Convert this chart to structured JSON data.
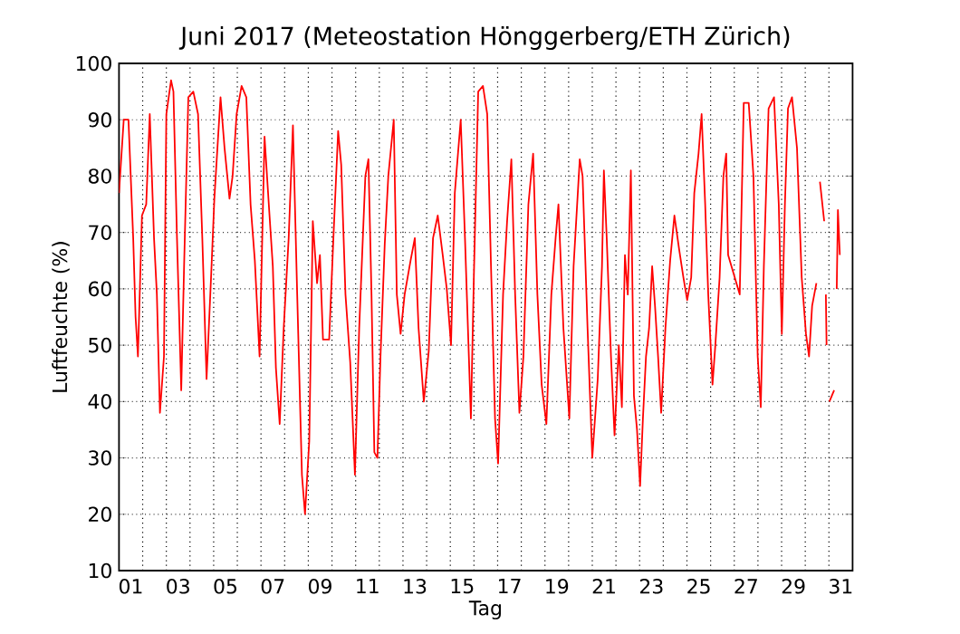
{
  "chart_data": {
    "type": "line",
    "title": "Juni 2017  (Meteostation Hönggerberg/ETH Zürich)",
    "xlabel": "Tag",
    "ylabel": "Luftfeuchte (%)",
    "xlim": [
      0,
      31
    ],
    "ylim": [
      10,
      100
    ],
    "xticks": [
      {
        "value": 0.5,
        "label": "01"
      },
      {
        "value": 1,
        "label": null
      },
      {
        "value": 2,
        "label": null
      },
      {
        "value": 2.5,
        "label": "03"
      },
      {
        "value": 3,
        "label": null
      },
      {
        "value": 4,
        "label": null
      },
      {
        "value": 4.5,
        "label": "05"
      },
      {
        "value": 5,
        "label": null
      },
      {
        "value": 6,
        "label": null
      },
      {
        "value": 6.5,
        "label": "07"
      },
      {
        "value": 7,
        "label": null
      },
      {
        "value": 8,
        "label": null
      },
      {
        "value": 8.5,
        "label": "09"
      },
      {
        "value": 9,
        "label": null
      },
      {
        "value": 10,
        "label": null
      },
      {
        "value": 10.5,
        "label": "11"
      },
      {
        "value": 11,
        "label": null
      },
      {
        "value": 12,
        "label": null
      },
      {
        "value": 12.5,
        "label": "13"
      },
      {
        "value": 13,
        "label": null
      },
      {
        "value": 14,
        "label": null
      },
      {
        "value": 14.5,
        "label": "15"
      },
      {
        "value": 15,
        "label": null
      },
      {
        "value": 16,
        "label": null
      },
      {
        "value": 16.5,
        "label": "17"
      },
      {
        "value": 17,
        "label": null
      },
      {
        "value": 18,
        "label": null
      },
      {
        "value": 18.5,
        "label": "19"
      },
      {
        "value": 19,
        "label": null
      },
      {
        "value": 20,
        "label": null
      },
      {
        "value": 20.5,
        "label": "21"
      },
      {
        "value": 21,
        "label": null
      },
      {
        "value": 22,
        "label": null
      },
      {
        "value": 22.5,
        "label": "23"
      },
      {
        "value": 23,
        "label": null
      },
      {
        "value": 24,
        "label": null
      },
      {
        "value": 24.5,
        "label": "25"
      },
      {
        "value": 25,
        "label": null
      },
      {
        "value": 26,
        "label": null
      },
      {
        "value": 26.5,
        "label": "27"
      },
      {
        "value": 27,
        "label": null
      },
      {
        "value": 28,
        "label": null
      },
      {
        "value": 28.5,
        "label": "29"
      },
      {
        "value": 29,
        "label": null
      },
      {
        "value": 30,
        "label": null
      },
      {
        "value": 30.5,
        "label": "31"
      }
    ],
    "yticks": [
      10,
      20,
      30,
      40,
      50,
      60,
      70,
      80,
      90,
      100
    ],
    "grid": true,
    "line_style": "solid",
    "series": [
      {
        "color": "#ff0000",
        "x": [
          0,
          0.2,
          0.4,
          0.6,
          0.7,
          0.8,
          0.97,
          1.15,
          1.3,
          1.48,
          1.6,
          1.73,
          1.9,
          2.0,
          2.2,
          2.3,
          2.45,
          2.63,
          2.75,
          2.93,
          3.14,
          3.34,
          3.52,
          3.7,
          3.9,
          4.03,
          4.29,
          4.46,
          4.67,
          4.8,
          4.97,
          5.18,
          5.38,
          5.56,
          5.74,
          5.94,
          6.15,
          6.33,
          6.5,
          6.63,
          6.79,
          6.96,
          7.17,
          7.35,
          7.53,
          7.73,
          7.86,
          8.04,
          8.19,
          8.37,
          8.49,
          8.62,
          8.88,
          9.06,
          9.26,
          9.39,
          9.57,
          9.77,
          9.97,
          10.15,
          10.41,
          10.54,
          10.67,
          10.79,
          10.92,
          11.05,
          11.23,
          11.38,
          11.61,
          11.74,
          11.9,
          12.07,
          12.32,
          12.5,
          12.66,
          12.88,
          13.09,
          13.27,
          13.47,
          13.68,
          13.85,
          14.03,
          14.19,
          14.44,
          14.62,
          14.87,
          15.0,
          15.18,
          15.38,
          15.56,
          15.72,
          15.89,
          16.02,
          16.23,
          16.4,
          16.58,
          16.74,
          16.92,
          17.09,
          17.3,
          17.5,
          17.68,
          17.86,
          18.06,
          18.27,
          18.45,
          18.57,
          18.78,
          19.03,
          19.21,
          19.47,
          19.59,
          19.8,
          20.0,
          20.23,
          20.41,
          20.49,
          20.61,
          20.79,
          20.94,
          21.12,
          21.25,
          21.38,
          21.5,
          21.63,
          21.76,
          21.89,
          22.02,
          22.14,
          22.27,
          22.4,
          22.53,
          22.65,
          22.78,
          22.91,
          23.09,
          23.29,
          23.47,
          23.67,
          23.85,
          24.01,
          24.18,
          24.31,
          24.49,
          24.62,
          24.77,
          24.9,
          25.08,
          25.2,
          25.38,
          25.54,
          25.66,
          25.74,
          26.23,
          26.4,
          26.61,
          26.81,
          26.99,
          27.12,
          27.25,
          27.45,
          27.68,
          27.88,
          28.01,
          28.14,
          28.27,
          28.44,
          28.65,
          28.85,
          29.03,
          29.16,
          29.29,
          29.47,
          29.55,
          29.62,
          29.8,
          29.84,
          29.87,
          29.9,
          29.96,
          30.02,
          30.22,
          30.27,
          30.33,
          30.38,
          30.46
        ],
        "values": [
          77,
          90,
          90,
          69,
          55,
          48,
          73,
          75,
          91,
          69,
          59,
          38,
          48,
          91,
          97,
          95,
          69,
          42,
          64,
          94,
          95,
          91,
          69,
          44,
          63,
          76,
          94,
          85,
          76,
          80,
          91,
          96,
          94,
          75,
          65,
          48,
          87,
          75,
          64,
          46,
          36,
          53,
          69,
          89,
          59,
          27,
          20,
          33,
          72,
          61,
          66,
          51,
          51,
          69,
          88,
          82,
          59,
          47,
          27,
          53,
          80,
          83,
          59,
          31,
          30,
          48,
          68,
          80,
          90,
          59,
          52,
          59,
          65,
          69,
          53,
          40,
          49,
          69,
          73,
          66,
          60,
          50,
          77,
          90,
          69,
          37,
          63,
          95,
          96,
          91,
          64,
          37,
          29,
          59,
          72,
          83,
          59,
          38,
          48,
          75,
          84,
          59,
          43,
          36,
          59,
          69,
          75,
          53,
          37,
          64,
          83,
          80,
          53,
          30,
          44,
          64,
          81,
          69,
          48,
          34,
          50,
          39,
          66,
          59,
          81,
          41,
          35,
          25,
          37,
          48,
          53,
          64,
          57,
          48,
          38,
          53,
          65,
          73,
          67,
          62,
          58,
          62,
          77,
          84,
          91,
          75,
          59,
          43,
          50,
          62,
          80,
          84,
          66,
          59,
          93,
          93,
          80,
          48,
          39,
          64,
          92,
          94,
          75,
          52,
          75,
          92,
          94,
          85,
          62,
          52,
          48,
          57,
          61,
          null,
          79,
          72,
          null,
          59,
          50,
          null,
          40,
          42,
          null,
          60,
          74,
          66
        ]
      }
    ]
  }
}
